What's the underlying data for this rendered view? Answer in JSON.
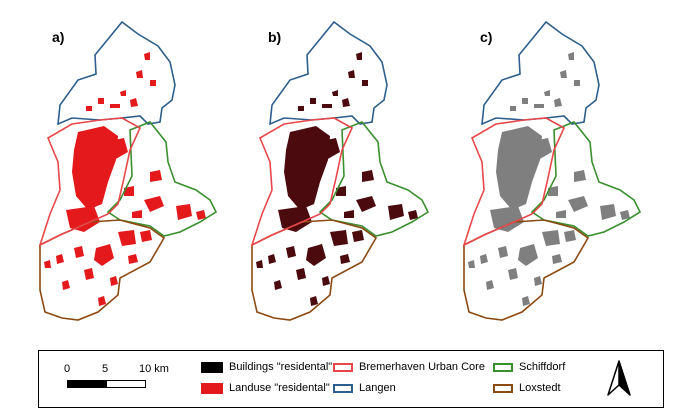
{
  "panels": [
    {
      "label": "a)",
      "fill": "#e3191c"
    },
    {
      "label": "b)",
      "fill": "#4a0a0e"
    },
    {
      "label": "c)",
      "fill": "#555555"
    }
  ],
  "legend": {
    "scale_bar": {
      "ticks": [
        "0",
        "5",
        "10 km"
      ]
    },
    "items": [
      {
        "label": "Buildings \"residental\"",
        "kind": "fill",
        "color": "#000000"
      },
      {
        "label": "Landuse \"residental\"",
        "kind": "fill",
        "color": "#e3191c"
      },
      {
        "label": "Bremerhaven Urban Core",
        "kind": "line",
        "color": "#e8474a"
      },
      {
        "label": "Langen",
        "kind": "line",
        "color": "#2e5f8c"
      },
      {
        "label": "Schiffdorf",
        "kind": "line",
        "color": "#3a8f2e"
      },
      {
        "label": "Loxstedt",
        "kind": "line",
        "color": "#8b4a12"
      }
    ],
    "north_arrow": "north-arrow-icon"
  },
  "colors": {
    "bremerhaven": "#e8474a",
    "langen": "#2e5f8c",
    "schiffdorf": "#3a8f2e",
    "loxstedt": "#8b4a12"
  }
}
